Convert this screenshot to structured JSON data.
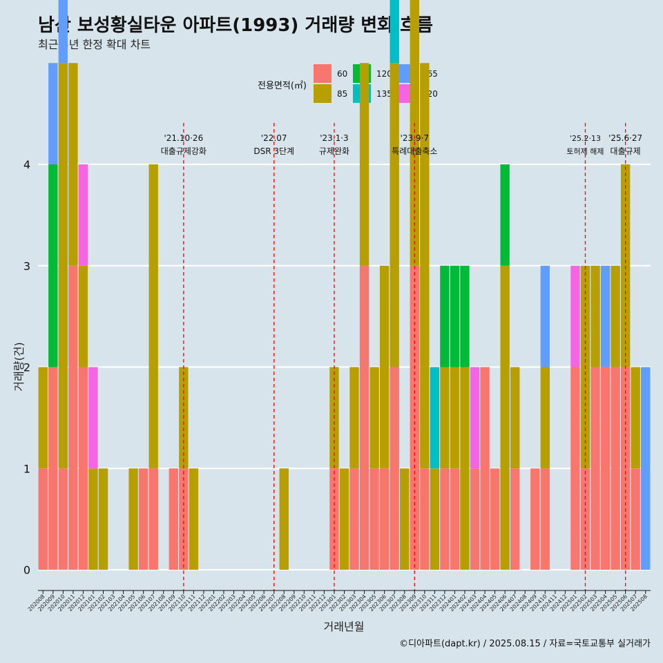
{
  "title": "남산 보성황실타운 아파트(1993) 거래량 변화 흐름",
  "subtitle": "최근 5년 한정 확대 차트",
  "caption": "©디아파트(dapt.kr) / 2025.08.15 / 자료=국토교통부 실거래가",
  "legend": {
    "title": "전용면적(㎡)",
    "placement": "top-center",
    "items": [
      {
        "label": "60",
        "color": "#f8766d"
      },
      {
        "label": "85",
        "color": "#b79f00"
      },
      {
        "label": "120",
        "color": "#00ba38"
      },
      {
        "label": "135",
        "color": "#00bfc4"
      },
      {
        "label": "165",
        "color": "#619cff"
      },
      {
        "label": "220",
        "color": "#f564e3"
      }
    ]
  },
  "chart_data": {
    "type": "bar",
    "title": "남산 보성황실타운 아파트(1993) 거래량 변화 흐름",
    "subtitle": "최근 5년 한정 확대 차트",
    "xlabel": "거래년월",
    "ylabel": "거래량(건)",
    "ylim": [
      0,
      4
    ],
    "yticks": [
      0,
      1,
      2,
      3,
      4
    ],
    "grid": "horizontal",
    "categories": [
      "202008",
      "202009",
      "202010",
      "202011",
      "202012",
      "202101",
      "202102",
      "202103",
      "202104",
      "202105",
      "202106",
      "202107",
      "202108",
      "202109",
      "202110",
      "202111",
      "202112",
      "202201",
      "202202",
      "202203",
      "202204",
      "202205",
      "202206",
      "202207",
      "202208",
      "202209",
      "202210",
      "202211",
      "202212",
      "202301",
      "202302",
      "202303",
      "202304",
      "202305",
      "202306",
      "202307",
      "202308",
      "202309",
      "202310",
      "202311",
      "202312",
      "202401",
      "202402",
      "202403",
      "202404",
      "202405",
      "202406",
      "202407",
      "202408",
      "202409",
      "202410",
      "202411",
      "202412",
      "202501",
      "202502",
      "202503",
      "202504",
      "202505",
      "202506",
      "202507",
      "202508"
    ],
    "series": [
      {
        "name": "60",
        "color": "#f8766d",
        "values": [
          1,
          2,
          1,
          3,
          2,
          0,
          0,
          0,
          0,
          0,
          1,
          1,
          0,
          1,
          1,
          0,
          0,
          0,
          0,
          0,
          0,
          0,
          0,
          0,
          0,
          0,
          0,
          0,
          0,
          1,
          0,
          1,
          3,
          1,
          1,
          2,
          0,
          3,
          1,
          0,
          1,
          1,
          0,
          1,
          2,
          1,
          0,
          1,
          0,
          1,
          1,
          0,
          0,
          2,
          1,
          2,
          2,
          2,
          2,
          1,
          0
        ]
      },
      {
        "name": "85",
        "color": "#b79f00",
        "values": [
          1,
          0,
          4,
          2,
          1,
          1,
          1,
          0,
          0,
          1,
          0,
          3,
          0,
          0,
          1,
          1,
          0,
          0,
          0,
          0,
          0,
          0,
          0,
          0,
          1,
          0,
          0,
          0,
          0,
          1,
          1,
          1,
          2,
          1,
          2,
          3,
          1,
          3,
          4,
          1,
          1,
          1,
          2,
          0,
          0,
          0,
          3,
          1,
          0,
          0,
          1,
          0,
          0,
          0,
          2,
          1,
          0,
          1,
          2,
          1,
          0
        ]
      },
      {
        "name": "120",
        "color": "#00ba38",
        "values": [
          0,
          2,
          0,
          0,
          0,
          0,
          0,
          0,
          0,
          0,
          0,
          0,
          0,
          0,
          0,
          0,
          0,
          0,
          0,
          0,
          0,
          0,
          0,
          0,
          0,
          0,
          0,
          0,
          0,
          0,
          0,
          0,
          0,
          0,
          0,
          0,
          0,
          0,
          0,
          0,
          1,
          1,
          1,
          0,
          0,
          0,
          1,
          0,
          0,
          0,
          0,
          0,
          0,
          0,
          0,
          0,
          0,
          0,
          0,
          0,
          0
        ]
      },
      {
        "name": "135",
        "color": "#00bfc4",
        "values": [
          0,
          0,
          0,
          0,
          0,
          0,
          0,
          0,
          0,
          0,
          0,
          0,
          0,
          0,
          0,
          0,
          0,
          0,
          0,
          0,
          0,
          0,
          0,
          0,
          0,
          0,
          0,
          0,
          0,
          0,
          0,
          0,
          0,
          0,
          0,
          1,
          0,
          0,
          0,
          1,
          0,
          0,
          0,
          0,
          0,
          0,
          0,
          0,
          0,
          0,
          0,
          0,
          0,
          0,
          0,
          0,
          0,
          0,
          0,
          0,
          0
        ]
      },
      {
        "name": "165",
        "color": "#619cff",
        "values": [
          0,
          1,
          1,
          0,
          0,
          0,
          0,
          0,
          0,
          0,
          0,
          0,
          0,
          0,
          0,
          0,
          0,
          0,
          0,
          0,
          0,
          0,
          0,
          0,
          0,
          0,
          0,
          0,
          0,
          0,
          0,
          0,
          0,
          0,
          0,
          0,
          0,
          0,
          0,
          0,
          0,
          0,
          0,
          0,
          0,
          0,
          0,
          0,
          0,
          0,
          1,
          0,
          0,
          0,
          0,
          0,
          1,
          0,
          0,
          0,
          2
        ]
      },
      {
        "name": "220",
        "color": "#f564e3",
        "values": [
          0,
          0,
          0,
          0,
          1,
          1,
          0,
          0,
          0,
          0,
          0,
          0,
          0,
          0,
          0,
          0,
          0,
          0,
          0,
          0,
          0,
          0,
          0,
          0,
          0,
          0,
          0,
          0,
          0,
          0,
          0,
          0,
          0,
          0,
          0,
          0,
          0,
          0,
          0,
          0,
          0,
          0,
          0,
          1,
          0,
          0,
          0,
          0,
          0,
          0,
          0,
          0,
          0,
          1,
          0,
          0,
          0,
          0,
          0,
          0,
          0
        ]
      }
    ],
    "annotations": [
      {
        "category": "202110",
        "line1": "'21.10·26",
        "line2": "대출규제강화",
        "size": "normal"
      },
      {
        "category": "202207",
        "line1": "'22.07",
        "line2": "DSR 3단계",
        "size": "normal"
      },
      {
        "category": "202301",
        "line1": "'23.1·3",
        "line2": "규제완화",
        "size": "normal"
      },
      {
        "category": "202309",
        "line1": "'23.9·7",
        "line2": "특례대출축소",
        "size": "normal"
      },
      {
        "category": "202502",
        "line1": "'25.2·13",
        "line2": "토허제 해제",
        "size": "small"
      },
      {
        "category": "202506",
        "line1": "'25.6·27",
        "line2": "대출규제",
        "size": "normal"
      }
    ]
  }
}
